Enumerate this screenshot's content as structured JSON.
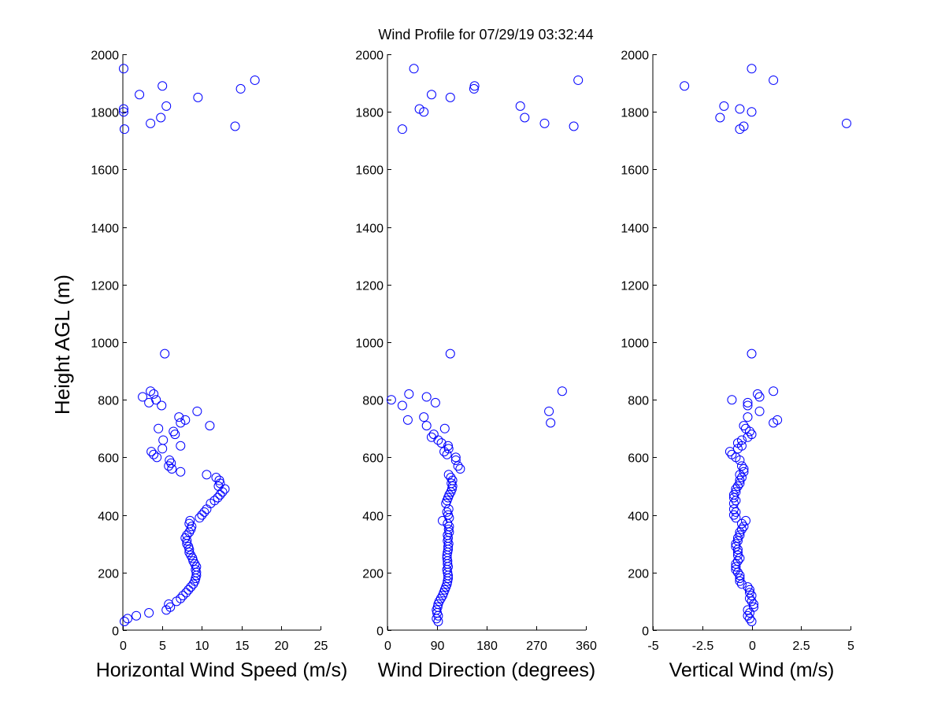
{
  "chart_data": {
    "type": "scatter",
    "title": "Wind Profile for  07/29/19 03:32:44",
    "ylabel": "Height AGL (m)",
    "ylim": [
      0,
      2000
    ],
    "yticks": [
      0,
      200,
      400,
      600,
      800,
      1000,
      1200,
      1400,
      1600,
      1800,
      2000
    ],
    "yticklabels": [
      "0",
      "200",
      "400",
      "600",
      "800",
      "1000",
      "1200",
      "1400",
      "1600",
      "1800",
      "2000"
    ],
    "marker": "circle-open",
    "color": "#0000ff",
    "panels": [
      {
        "id": "speed",
        "xlabel": "Horizontal Wind Speed (m/s)",
        "xlim": [
          0,
          25
        ],
        "xticks": [
          0,
          5,
          10,
          15,
          20,
          25
        ],
        "xticklabels": [
          "0",
          "5",
          "10",
          "15",
          "20",
          "25"
        ],
        "points": [
          [
            0.2,
            30
          ],
          [
            0.6,
            40
          ],
          [
            1.7,
            50
          ],
          [
            3.3,
            60
          ],
          [
            5.5,
            70
          ],
          [
            6.0,
            80
          ],
          [
            5.8,
            90
          ],
          [
            6.8,
            100
          ],
          [
            7.3,
            110
          ],
          [
            7.6,
            120
          ],
          [
            8.0,
            130
          ],
          [
            8.3,
            140
          ],
          [
            8.6,
            150
          ],
          [
            8.9,
            160
          ],
          [
            9.1,
            170
          ],
          [
            9.2,
            180
          ],
          [
            9.3,
            190
          ],
          [
            9.3,
            200
          ],
          [
            9.2,
            210
          ],
          [
            9.3,
            220
          ],
          [
            9.1,
            230
          ],
          [
            8.9,
            240
          ],
          [
            8.8,
            250
          ],
          [
            8.6,
            260
          ],
          [
            8.4,
            270
          ],
          [
            8.4,
            280
          ],
          [
            8.3,
            290
          ],
          [
            8.1,
            300
          ],
          [
            8.1,
            310
          ],
          [
            7.9,
            320
          ],
          [
            8.1,
            330
          ],
          [
            8.4,
            340
          ],
          [
            8.6,
            350
          ],
          [
            8.7,
            360
          ],
          [
            8.4,
            370
          ],
          [
            8.5,
            380
          ],
          [
            9.7,
            390
          ],
          [
            10.0,
            400
          ],
          [
            10.3,
            410
          ],
          [
            10.6,
            420
          ],
          [
            11.1,
            440
          ],
          [
            11.6,
            450
          ],
          [
            12.0,
            460
          ],
          [
            12.3,
            470
          ],
          [
            12.6,
            480
          ],
          [
            12.9,
            490
          ],
          [
            12.1,
            500
          ],
          [
            12.3,
            510
          ],
          [
            12.2,
            520
          ],
          [
            11.8,
            530
          ],
          [
            10.6,
            540
          ],
          [
            7.3,
            550
          ],
          [
            6.2,
            560
          ],
          [
            5.8,
            570
          ],
          [
            6.1,
            580
          ],
          [
            5.9,
            590
          ],
          [
            4.3,
            600
          ],
          [
            3.9,
            610
          ],
          [
            3.6,
            620
          ],
          [
            5.0,
            630
          ],
          [
            7.3,
            640
          ],
          [
            5.1,
            660
          ],
          [
            6.6,
            680
          ],
          [
            6.4,
            690
          ],
          [
            4.5,
            700
          ],
          [
            11.0,
            710
          ],
          [
            7.3,
            720
          ],
          [
            7.9,
            730
          ],
          [
            7.1,
            740
          ],
          [
            9.4,
            760
          ],
          [
            4.9,
            780
          ],
          [
            3.3,
            790
          ],
          [
            4.2,
            800
          ],
          [
            2.5,
            810
          ],
          [
            3.9,
            820
          ],
          [
            3.5,
            830
          ],
          [
            5.3,
            960
          ],
          [
            0.2,
            1740
          ],
          [
            14.2,
            1750
          ],
          [
            3.5,
            1760
          ],
          [
            4.8,
            1780
          ],
          [
            0.1,
            1800
          ],
          [
            0.1,
            1810
          ],
          [
            5.5,
            1820
          ],
          [
            9.5,
            1850
          ],
          [
            2.1,
            1860
          ],
          [
            14.9,
            1880
          ],
          [
            5.0,
            1890
          ],
          [
            16.7,
            1910
          ],
          [
            0.1,
            1950
          ]
        ]
      },
      {
        "id": "direction",
        "xlabel": "Wind Direction (degrees)",
        "xlim": [
          0,
          360
        ],
        "xticks": [
          0,
          90,
          180,
          270,
          360
        ],
        "xticklabels": [
          "0",
          "90",
          "180",
          "270",
          "360"
        ],
        "points": [
          [
            92,
            30
          ],
          [
            89,
            40
          ],
          [
            92,
            50
          ],
          [
            90,
            60
          ],
          [
            89,
            70
          ],
          [
            91,
            80
          ],
          [
            92,
            90
          ],
          [
            94,
            100
          ],
          [
            97,
            110
          ],
          [
            100,
            120
          ],
          [
            102,
            130
          ],
          [
            104,
            140
          ],
          [
            106,
            150
          ],
          [
            108,
            160
          ],
          [
            109,
            170
          ],
          [
            110,
            180
          ],
          [
            110,
            190
          ],
          [
            109,
            200
          ],
          [
            108,
            210
          ],
          [
            110,
            220
          ],
          [
            109,
            230
          ],
          [
            109,
            240
          ],
          [
            108,
            250
          ],
          [
            108,
            260
          ],
          [
            109,
            270
          ],
          [
            110,
            280
          ],
          [
            110,
            290
          ],
          [
            111,
            300
          ],
          [
            109,
            310
          ],
          [
            110,
            320
          ],
          [
            109,
            330
          ],
          [
            112,
            340
          ],
          [
            111,
            350
          ],
          [
            112,
            360
          ],
          [
            109,
            370
          ],
          [
            100,
            380
          ],
          [
            112,
            390
          ],
          [
            110,
            400
          ],
          [
            108,
            410
          ],
          [
            111,
            420
          ],
          [
            106,
            440
          ],
          [
            108,
            450
          ],
          [
            110,
            460
          ],
          [
            112,
            470
          ],
          [
            115,
            480
          ],
          [
            117,
            490
          ],
          [
            118,
            500
          ],
          [
            116,
            510
          ],
          [
            118,
            520
          ],
          [
            115,
            530
          ],
          [
            111,
            540
          ],
          [
            132,
            560
          ],
          [
            128,
            570
          ],
          [
            124,
            590
          ],
          [
            124,
            600
          ],
          [
            108,
            610
          ],
          [
            103,
            620
          ],
          [
            111,
            630
          ],
          [
            110,
            640
          ],
          [
            98,
            650
          ],
          [
            92,
            660
          ],
          [
            80,
            670
          ],
          [
            84,
            680
          ],
          [
            104,
            700
          ],
          [
            71,
            710
          ],
          [
            296,
            720
          ],
          [
            37,
            730
          ],
          [
            66,
            740
          ],
          [
            293,
            760
          ],
          [
            27,
            780
          ],
          [
            87,
            790
          ],
          [
            7,
            800
          ],
          [
            71,
            810
          ],
          [
            39,
            820
          ],
          [
            317,
            830
          ],
          [
            114,
            960
          ],
          [
            27,
            1740
          ],
          [
            338,
            1750
          ],
          [
            285,
            1760
          ],
          [
            249,
            1780
          ],
          [
            66,
            1800
          ],
          [
            58,
            1810
          ],
          [
            241,
            1820
          ],
          [
            114,
            1850
          ],
          [
            80,
            1860
          ],
          [
            157,
            1880
          ],
          [
            158,
            1890
          ],
          [
            346,
            1910
          ],
          [
            48,
            1950
          ]
        ]
      },
      {
        "id": "vertical",
        "xlabel": "Vertical Wind (m/s)",
        "xlim": [
          -5,
          5
        ],
        "xticks": [
          -5,
          -2.5,
          0,
          2.5,
          5
        ],
        "xticklabels": [
          "-5",
          "-2.5",
          "0",
          "2.5",
          "5"
        ],
        "points": [
          [
            0,
            30
          ],
          [
            -0.1,
            40
          ],
          [
            -0.2,
            50
          ],
          [
            -0.1,
            60
          ],
          [
            -0.2,
            70
          ],
          [
            0.1,
            80
          ],
          [
            0.1,
            90
          ],
          [
            0.0,
            100
          ],
          [
            -0.1,
            110
          ],
          [
            0.0,
            120
          ],
          [
            -0.1,
            130
          ],
          [
            -0.1,
            140
          ],
          [
            -0.2,
            150
          ],
          [
            -0.5,
            160
          ],
          [
            -0.6,
            170
          ],
          [
            -0.6,
            180
          ],
          [
            -0.6,
            190
          ],
          [
            -0.7,
            200
          ],
          [
            -0.8,
            210
          ],
          [
            -0.8,
            220
          ],
          [
            -0.8,
            230
          ],
          [
            -0.7,
            240
          ],
          [
            -0.6,
            250
          ],
          [
            -0.7,
            260
          ],
          [
            -0.7,
            270
          ],
          [
            -0.7,
            280
          ],
          [
            -0.8,
            290
          ],
          [
            -0.8,
            300
          ],
          [
            -0.7,
            310
          ],
          [
            -0.7,
            320
          ],
          [
            -0.6,
            330
          ],
          [
            -0.6,
            340
          ],
          [
            -0.5,
            350
          ],
          [
            -0.4,
            360
          ],
          [
            -0.5,
            370
          ],
          [
            -0.3,
            380
          ],
          [
            -0.8,
            390
          ],
          [
            -0.9,
            400
          ],
          [
            -0.8,
            410
          ],
          [
            -0.9,
            420
          ],
          [
            -0.9,
            440
          ],
          [
            -0.8,
            450
          ],
          [
            -0.9,
            460
          ],
          [
            -0.9,
            470
          ],
          [
            -0.8,
            480
          ],
          [
            -0.8,
            490
          ],
          [
            -0.7,
            500
          ],
          [
            -0.6,
            510
          ],
          [
            -0.6,
            520
          ],
          [
            -0.5,
            530
          ],
          [
            -0.6,
            540
          ],
          [
            -0.4,
            550
          ],
          [
            -0.4,
            560
          ],
          [
            -0.5,
            570
          ],
          [
            -0.6,
            590
          ],
          [
            -0.8,
            600
          ],
          [
            -1.0,
            610
          ],
          [
            -1.1,
            620
          ],
          [
            -0.7,
            630
          ],
          [
            -0.5,
            640
          ],
          [
            -0.7,
            650
          ],
          [
            -0.5,
            660
          ],
          [
            -0.2,
            670
          ],
          [
            0.0,
            680
          ],
          [
            -0.1,
            690
          ],
          [
            -0.3,
            700
          ],
          [
            -0.4,
            710
          ],
          [
            1.1,
            720
          ],
          [
            1.3,
            730
          ],
          [
            -0.2,
            740
          ],
          [
            0.4,
            760
          ],
          [
            -0.2,
            780
          ],
          [
            -0.2,
            790
          ],
          [
            -1.0,
            800
          ],
          [
            0.4,
            810
          ],
          [
            0.3,
            820
          ],
          [
            1.1,
            830
          ],
          [
            0.0,
            960
          ],
          [
            -0.6,
            1740
          ],
          [
            -0.4,
            1750
          ],
          [
            4.8,
            1760
          ],
          [
            -1.6,
            1780
          ],
          [
            0.0,
            1800
          ],
          [
            -0.6,
            1810
          ],
          [
            -1.4,
            1820
          ],
          [
            -3.4,
            1890
          ],
          [
            1.1,
            1910
          ],
          [
            0.0,
            1950
          ]
        ]
      }
    ]
  }
}
